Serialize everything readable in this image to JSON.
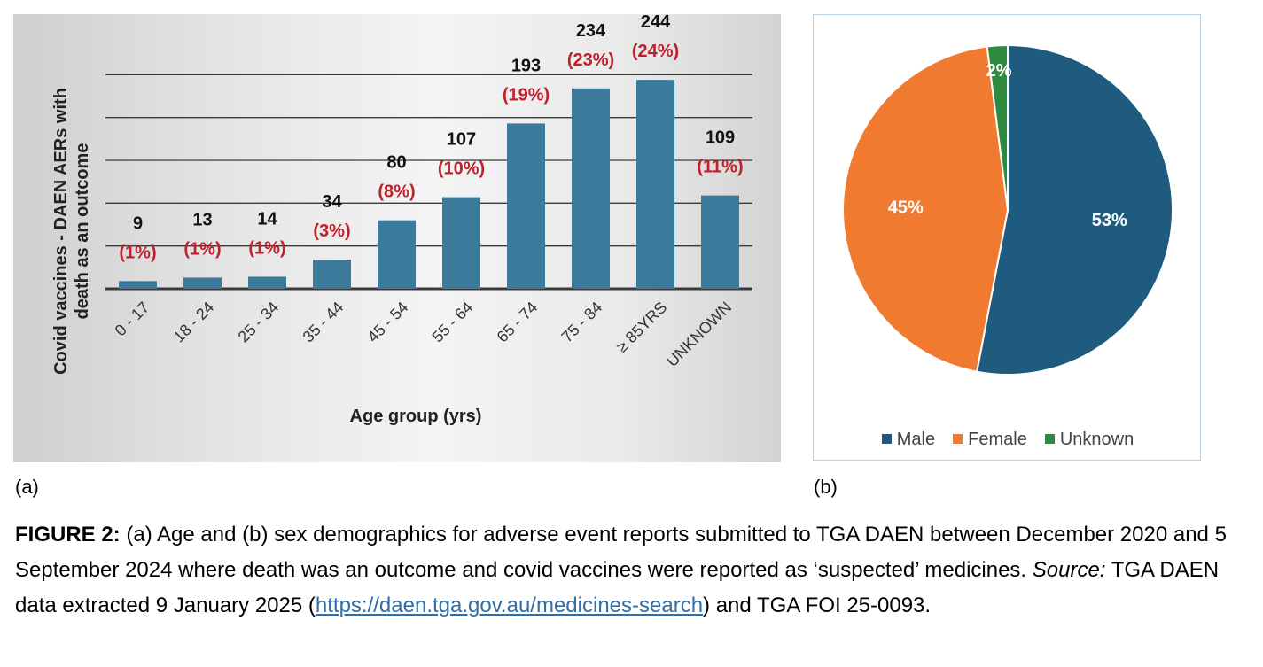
{
  "chart_data": [
    {
      "type": "bar",
      "panel_label": "(a)",
      "xlabel": "Age group (yrs)",
      "ylabel": "Covid vaccines - DAEN AERs with death as an outcome",
      "ylim": [
        0,
        300
      ],
      "grid": true,
      "gridlines": [
        50,
        100,
        150,
        200,
        250
      ],
      "categories": [
        "0 - 17",
        "18 - 24",
        "25 - 34",
        "35 - 44",
        "45 - 54",
        "55 - 64",
        "65 - 74",
        "75 - 84",
        "≥ 85YRS",
        "UNKNOWN"
      ],
      "values": [
        9,
        13,
        14,
        34,
        80,
        107,
        193,
        234,
        244,
        109
      ],
      "count_labels": [
        "9",
        "13",
        "14",
        "34",
        "80",
        "107",
        "193",
        "234",
        "244",
        "109"
      ],
      "percent_labels": [
        "(1%)",
        "(1%)",
        "(1%)",
        "(3%)",
        "(8%)",
        "(10%)",
        "(19%)",
        "(23%)",
        "(24%)",
        "(11%)"
      ],
      "bar_color": "#3b7a9a",
      "percent_color": "#c0202a"
    },
    {
      "type": "pie",
      "panel_label": "(b)",
      "labels": [
        "Male",
        "Female",
        "Unknown"
      ],
      "values": [
        53,
        45,
        2
      ],
      "value_labels": [
        "53%",
        "45%",
        "2%"
      ],
      "colors": [
        "#1f5b7e",
        "#ef7a30",
        "#2e8a3e"
      ],
      "legend_position": "bottom"
    }
  ],
  "caption": {
    "lead": "FIGURE 2:",
    "text1": " (a) Age and (b) sex demographics for adverse event reports submitted to TGA DAEN between December 2020 and 5 September 2024 where death was an outcome and covid vaccines were reported as ‘suspected’ medicines.  ",
    "source_label": "Source:",
    "text2": "  TGA DAEN data extracted 9 January 2025 (",
    "link": "https://daen.tga.gov.au/medicines-search",
    "text3": ") and TGA FOI 25-0093."
  }
}
